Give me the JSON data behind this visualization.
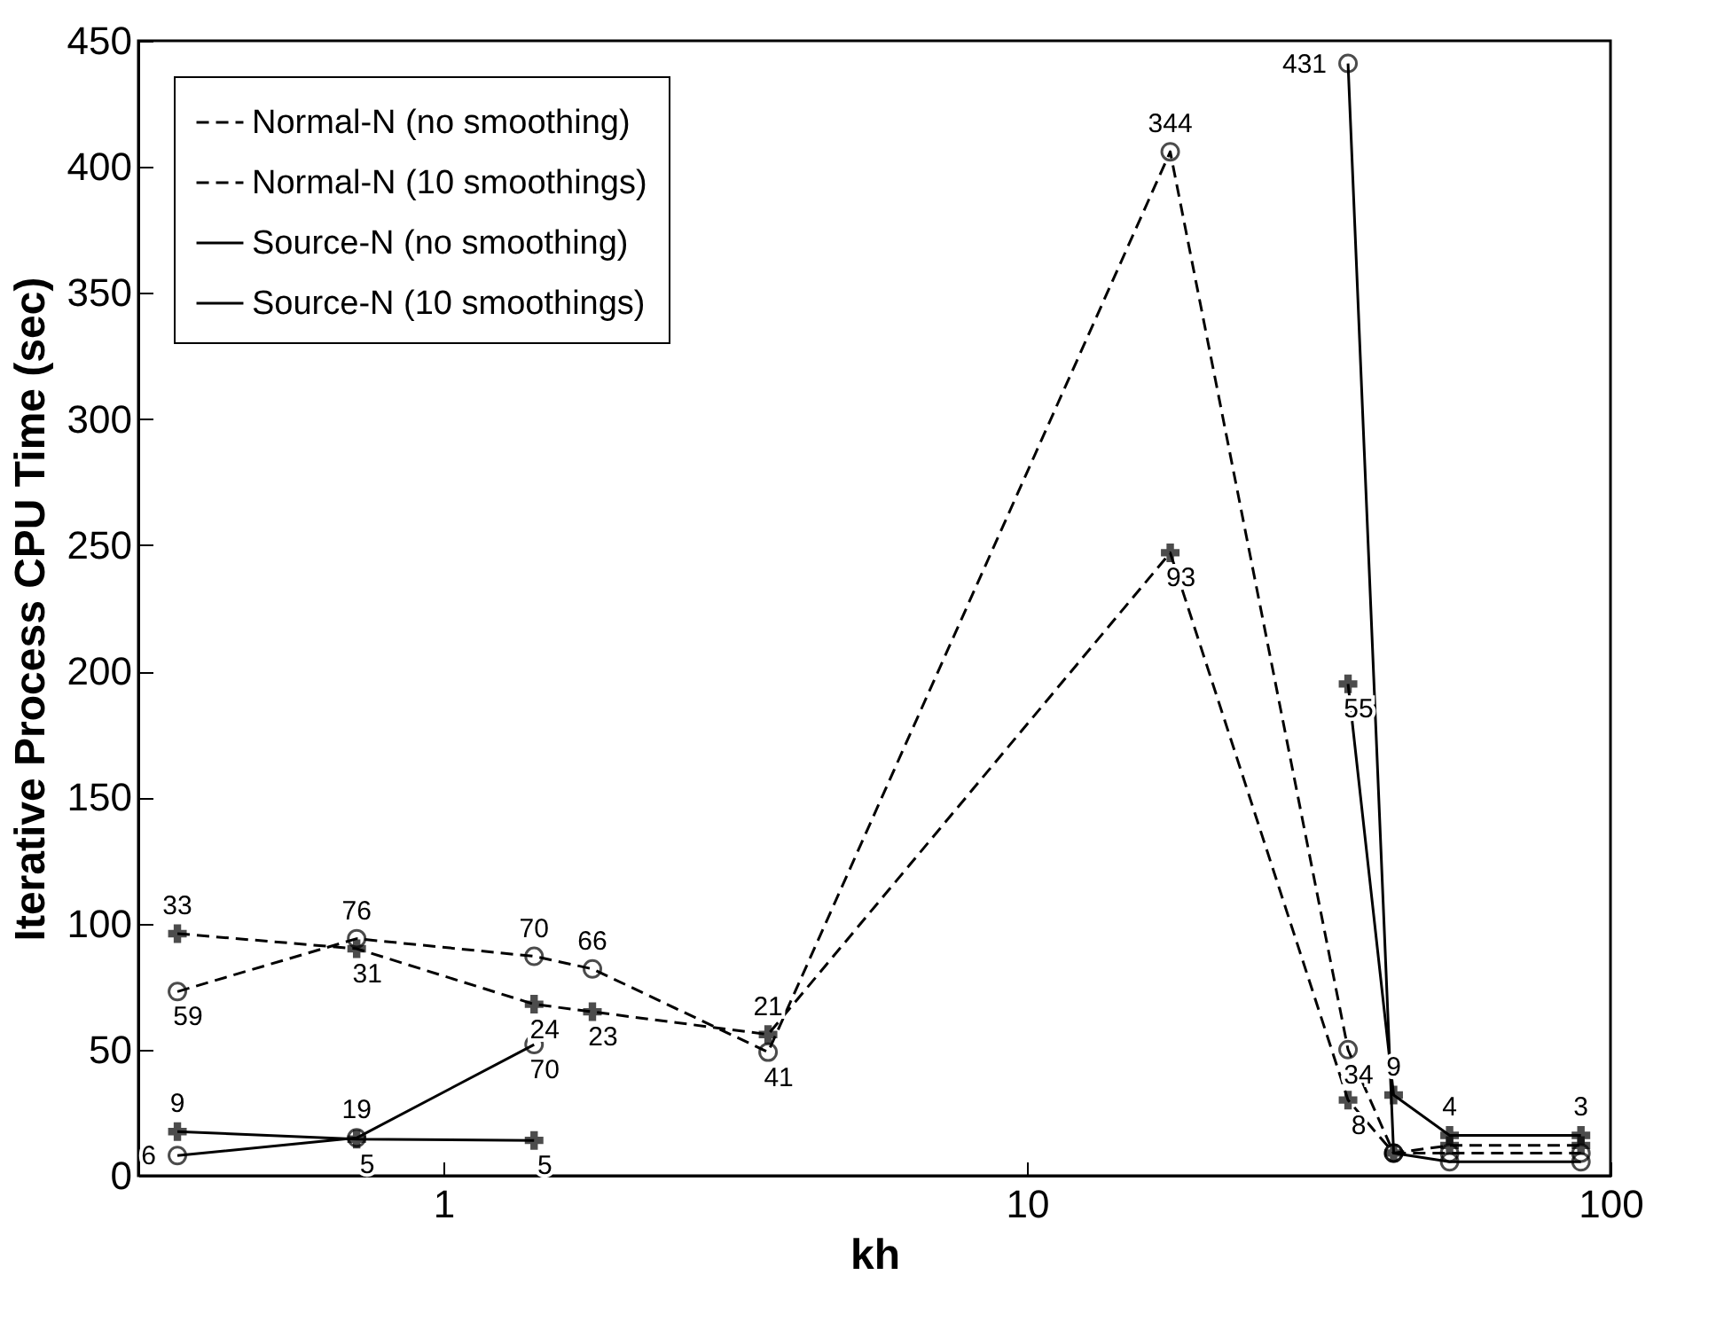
{
  "chart_data": {
    "type": "line",
    "xlabel": "kh",
    "ylabel": "Iterative Process  CPU Time (sec)",
    "x": [
      0.35,
      0.71,
      1.43,
      1.8,
      3.6,
      17.6,
      35.5,
      42.5,
      53,
      89
    ],
    "series": [
      {
        "name": "Normal-N (no smoothing)",
        "color": "#000000",
        "line_style": "dashed",
        "marker": "circle",
        "values": [
          73,
          94,
          87,
          82,
          49,
          406,
          50,
          9,
          9,
          9
        ]
      },
      {
        "name": "Normal-N (10 smoothings)",
        "color": "#000000",
        "line_style": "dashed",
        "marker": "cross",
        "values": [
          96,
          90,
          68,
          65,
          56,
          247,
          30,
          9,
          12,
          12
        ]
      },
      {
        "name": "Source-N (no smoothing)",
        "color": "#000000",
        "line_style": "solid",
        "marker": "circle",
        "values": [
          8,
          15,
          52,
          null,
          null,
          null,
          441,
          9,
          5.5,
          5.5
        ]
      },
      {
        "name": "Source-N (10 smoothings)",
        "color": "#000000",
        "line_style": "solid",
        "marker": "cross",
        "values": [
          17.5,
          14.5,
          14,
          null,
          null,
          null,
          195,
          32,
          16,
          16
        ]
      }
    ],
    "annotations": [
      {
        "text": "59",
        "x": 0.35,
        "y": 73
      },
      {
        "text": "76",
        "x": 0.71,
        "y": 94
      },
      {
        "text": "70",
        "x": 1.43,
        "y": 87
      },
      {
        "text": "66",
        "x": 1.8,
        "y": 82
      },
      {
        "text": "41",
        "x": 3.6,
        "y": 49
      },
      {
        "text": "344",
        "x": 17.6,
        "y": 406
      },
      {
        "text": "34",
        "x": 35.5,
        "y": 50
      },
      {
        "text": "33",
        "x": 0.35,
        "y": 96
      },
      {
        "text": "31",
        "x": 0.71,
        "y": 90
      },
      {
        "text": "24",
        "x": 1.43,
        "y": 68
      },
      {
        "text": "23",
        "x": 1.8,
        "y": 65
      },
      {
        "text": "21",
        "x": 3.6,
        "y": 56
      },
      {
        "text": "93",
        "x": 17.6,
        "y": 247
      },
      {
        "text": "8",
        "x": 35.5,
        "y": 30
      },
      {
        "text": "6",
        "x": 0.35,
        "y": 8
      },
      {
        "text": "19",
        "x": 0.71,
        "y": 15
      },
      {
        "text": "70",
        "x": 1.43,
        "y": 52
      },
      {
        "text": "431",
        "x": 35.5,
        "y": 441
      },
      {
        "text": "9",
        "x": 0.35,
        "y": 17.5
      },
      {
        "text": "5",
        "x": 0.71,
        "y": 14.5
      },
      {
        "text": "5",
        "x": 1.43,
        "y": 14
      },
      {
        "text": "55",
        "x": 35.5,
        "y": 195
      },
      {
        "text": "9",
        "x": 42.5,
        "y": 32
      },
      {
        "text": "4",
        "x": 53,
        "y": 16
      },
      {
        "text": "3",
        "x": 89,
        "y": 16
      }
    ],
    "log": "x",
    "xlim": [
      0.3,
      100
    ],
    "xticks": [
      1,
      10,
      100
    ],
    "ylim": [
      0,
      450
    ],
    "yticks": [
      0,
      50,
      100,
      150,
      200,
      250,
      300,
      350,
      400,
      450
    ],
    "grid": false,
    "legend": "top left"
  }
}
